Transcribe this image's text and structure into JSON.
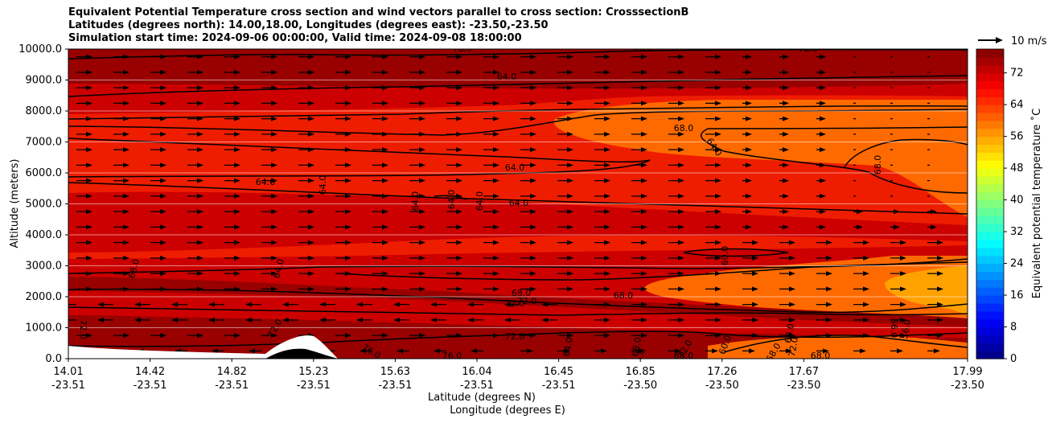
{
  "chart_data": {
    "type": "heatmap",
    "title_lines": [
      "Equivalent Potential Temperature cross section and wind vectors parallel to cross section: CrosssectionB",
      "Latitudes (degrees north): 14.00,18.00, Longitudes (degrees east): -23.50,-23.50",
      "Simulation start time: 2024-09-06 00:00:00, Valid time: 2024-09-08 18:00:00"
    ],
    "ylabel": "Altitude (meters)",
    "xlabel_lat": "Latitude (degrees N)",
    "xlabel_lon": "Longitude (degrees E)",
    "ylim": [
      0,
      10000
    ],
    "y_ticks": [
      "0.0",
      "1000.0",
      "2000.0",
      "3000.0",
      "4000.0",
      "5000.0",
      "6000.0",
      "7000.0",
      "8000.0",
      "9000.0",
      "10000.0"
    ],
    "x_ticks": [
      {
        "lat": "14.01",
        "lon": "-23.51"
      },
      {
        "lat": "14.42",
        "lon": "-23.51"
      },
      {
        "lat": "14.82",
        "lon": "-23.51"
      },
      {
        "lat": "15.23",
        "lon": "-23.51"
      },
      {
        "lat": "15.63",
        "lon": "-23.51"
      },
      {
        "lat": "16.04",
        "lon": "-23.51"
      },
      {
        "lat": "16.45",
        "lon": "-23.51"
      },
      {
        "lat": "16.85",
        "lon": "-23.50"
      },
      {
        "lat": "17.26",
        "lon": "-23.50"
      },
      {
        "lat": "17.67",
        "lon": "-23.50"
      },
      {
        "lat": "17.99",
        "lon": "-23.50"
      }
    ],
    "colorbar": {
      "label": "Equivalent potential temperature ˚C",
      "ticks": [
        "0",
        "8",
        "16",
        "24",
        "32",
        "40",
        "48",
        "56",
        "64",
        "72"
      ],
      "range": [
        0,
        78
      ],
      "colormap": "jet"
    },
    "quiver_key": "10 m/s",
    "contour_levels": [
      56,
      60,
      64,
      68,
      72,
      76
    ],
    "contour_labels": [
      "76.0",
      "76.0",
      "72.0",
      "64.0",
      "68.0",
      "64.0",
      "64.0",
      "64.0",
      "64.0",
      "64.0",
      "64.0",
      "64.0",
      "64.0",
      "68.0",
      "64.0",
      "60.0",
      "68.0",
      "68.0",
      "72.0",
      "72.0",
      "68.0",
      "72.0",
      "72.0",
      "76.0",
      "76.0",
      "72.0",
      "64.0",
      "68.0",
      "60.0",
      "68.0",
      "68.0",
      "68.0",
      "56.0",
      "56.0",
      "72.0",
      "64.0",
      "72.0",
      "68.0"
    ],
    "theta_e_bands": [
      {
        "alt_range": [
          9000,
          10000
        ],
        "value": 76
      },
      {
        "alt_range": [
          8000,
          9000
        ],
        "value": 72
      },
      {
        "alt_range": [
          6000,
          8000
        ],
        "value": 68
      },
      {
        "alt_range": [
          3000,
          6000
        ],
        "value": 70
      },
      {
        "alt_range": [
          2000,
          3000
        ],
        "value": 68
      },
      {
        "alt_range": [
          0,
          2000
        ],
        "value": 74
      }
    ],
    "colors": {
      "dark_red": "#990000",
      "red": "#cc0000",
      "red_orange": "#ee1d00",
      "orange": "#ff6a00",
      "yellow_orange": "#ffa200",
      "terrain": "#000000"
    }
  }
}
